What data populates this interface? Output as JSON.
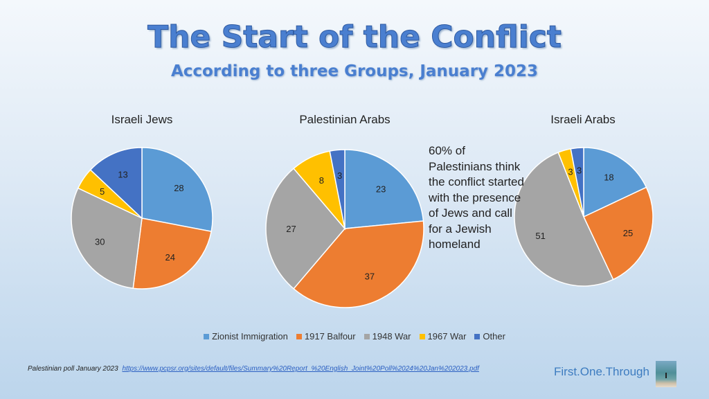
{
  "title": "The Start of the Conflict",
  "subtitle": "According to three Groups, January 2023",
  "note": "60% of Palestinians think the conflict started with the presence of Jews and call for a Jewish homeland",
  "footer": {
    "source_label": "Palestinian poll January 2023",
    "link": "https://www.pcpsr.org/sites/default/files/Summary%20Report_%20English_Joint%20Poll%2024%20Jan%202023.pdf"
  },
  "brand": "First.One.Through",
  "chart_data": [
    {
      "type": "pie",
      "title": "Israeli Jews",
      "categories": [
        "Zionist Immigration",
        "1917 Balfour",
        "1948 War",
        "1967 War",
        "Other"
      ],
      "values": [
        28,
        24,
        30,
        5,
        13
      ]
    },
    {
      "type": "pie",
      "title": "Palestinian Arabs",
      "categories": [
        "Zionist Immigration",
        "1917 Balfour",
        "1948 War",
        "1967 War",
        "Other"
      ],
      "values": [
        23,
        37,
        27,
        8,
        3
      ]
    },
    {
      "type": "pie",
      "title": "Israeli Arabs",
      "categories": [
        "Zionist Immigration",
        "1917 Balfour",
        "1948 War",
        "1967 War",
        "Other"
      ],
      "values": [
        18,
        25,
        51,
        3,
        3
      ]
    }
  ],
  "legend": [
    {
      "label": "Zionist Immigration",
      "color": "#5B9BD5"
    },
    {
      "label": "1917 Balfour",
      "color": "#ED7D31"
    },
    {
      "label": "1948 War",
      "color": "#A5A5A5"
    },
    {
      "label": "1967 War",
      "color": "#FFC000"
    },
    {
      "label": "Other",
      "color": "#4472C4"
    }
  ]
}
